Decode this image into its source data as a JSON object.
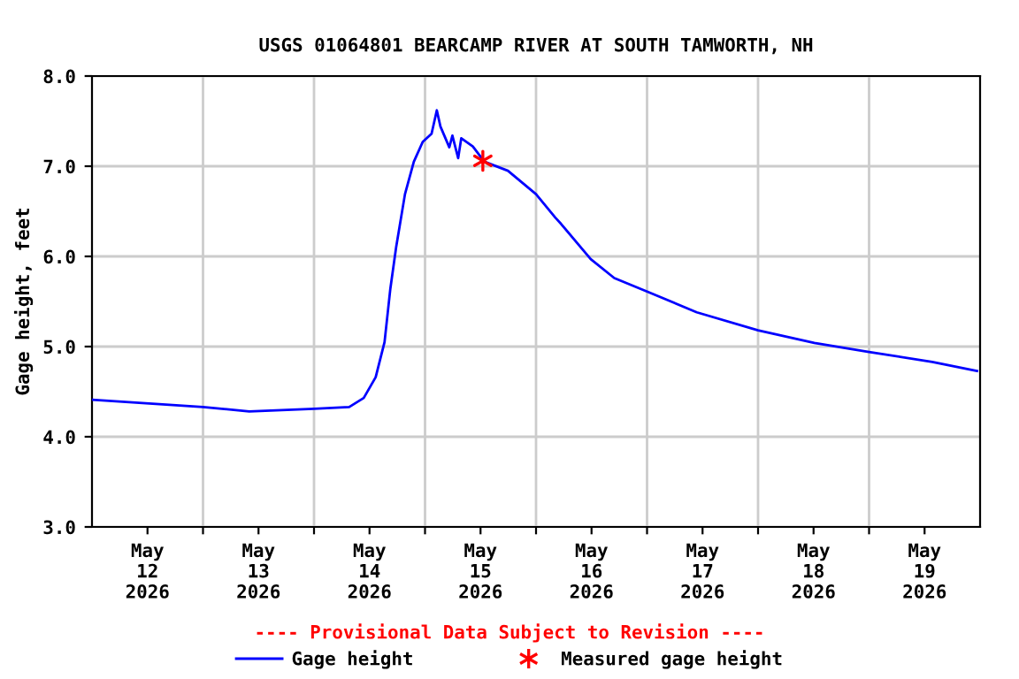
{
  "chart_data": {
    "type": "line",
    "title": "USGS 01064801 BEARCAMP RIVER AT SOUTH TAMWORTH, NH",
    "ylabel": "Gage height, feet",
    "annotations": [
      "---- Provisional Data Subject to Revision ----"
    ],
    "series": [
      {
        "name": "Gage height",
        "color": "#0000ff",
        "line_style": "solid",
        "marker": "none",
        "x": [
          "2026-05-12T00:00",
          "2026-05-13T00:00",
          "2026-05-13T10:00",
          "2026-05-14T00:00",
          "2026-05-14T07:36",
          "2026-05-14T10:45",
          "2026-05-14T13:20",
          "2026-05-14T15:15",
          "2026-05-14T16:30",
          "2026-05-14T17:45",
          "2026-05-14T19:40",
          "2026-05-14T21:35",
          "2026-05-14T23:30",
          "2026-05-15T01:25",
          "2026-05-15T02:33",
          "2026-05-15T03:20",
          "2026-05-15T05:15",
          "2026-05-15T05:55",
          "2026-05-15T07:10",
          "2026-05-15T07:50",
          "2026-05-15T10:20",
          "2026-05-15T12:50",
          "2026-05-15T17:55",
          "2026-05-16T00:00",
          "2026-05-16T04:10",
          "2026-05-16T05:25",
          "2026-05-16T11:50",
          "2026-05-16T16:55",
          "2026-05-17T00:00",
          "2026-05-17T10:45",
          "2026-05-18T00:00",
          "2026-05-18T12:10",
          "2026-05-19T00:00",
          "2026-05-19T13:40",
          "2026-05-19T23:20"
        ],
        "values": [
          4.41,
          4.33,
          4.28,
          4.31,
          4.33,
          4.43,
          4.66,
          5.05,
          5.64,
          6.1,
          6.69,
          7.05,
          7.27,
          7.36,
          7.62,
          7.44,
          7.21,
          7.34,
          7.09,
          7.31,
          7.22,
          7.05,
          6.95,
          6.69,
          6.43,
          6.36,
          5.97,
          5.76,
          5.61,
          5.38,
          5.18,
          5.04,
          4.94,
          4.83,
          4.73
        ]
      },
      {
        "name": "Measured gage height",
        "color": "#ff0000",
        "type": "scatter",
        "marker": "cross",
        "x": [
          "2026-05-15T12:30"
        ],
        "values": [
          7.06
        ]
      }
    ],
    "xlim": [
      "2026-05-12T00:00",
      "2026-05-20T00:00"
    ],
    "xticks": [
      {
        "value": "2026-05-12T12:00",
        "label": "May\n12\n2026"
      },
      {
        "value": "2026-05-13T00:00",
        "label": null
      },
      {
        "value": "2026-05-13T12:00",
        "label": "May\n13\n2026"
      },
      {
        "value": "2026-05-14T00:00",
        "label": null
      },
      {
        "value": "2026-05-14T12:00",
        "label": "May\n14\n2026"
      },
      {
        "value": "2026-05-15T00:00",
        "label": null
      },
      {
        "value": "2026-05-15T12:00",
        "label": "May\n15\n2026"
      },
      {
        "value": "2026-05-16T00:00",
        "label": null
      },
      {
        "value": "2026-05-16T12:00",
        "label": "May\n16\n2026"
      },
      {
        "value": "2026-05-17T00:00",
        "label": null
      },
      {
        "value": "2026-05-17T12:00",
        "label": "May\n17\n2026"
      },
      {
        "value": "2026-05-18T00:00",
        "label": null
      },
      {
        "value": "2026-05-18T12:00",
        "label": "May\n18\n2026"
      },
      {
        "value": "2026-05-19T00:00",
        "label": null
      },
      {
        "value": "2026-05-19T12:00",
        "label": "May\n19\n2026"
      }
    ],
    "ylim": [
      3.0,
      8.0
    ],
    "yticks": [
      {
        "value": 3,
        "label": "3.0"
      },
      {
        "value": 4,
        "label": "4.0"
      },
      {
        "value": 5,
        "label": "5.0"
      },
      {
        "value": 6,
        "label": "6.0"
      },
      {
        "value": 7,
        "label": "7.0"
      },
      {
        "value": 8,
        "label": "8.0"
      }
    ],
    "grid": true,
    "legend": "bottom"
  }
}
